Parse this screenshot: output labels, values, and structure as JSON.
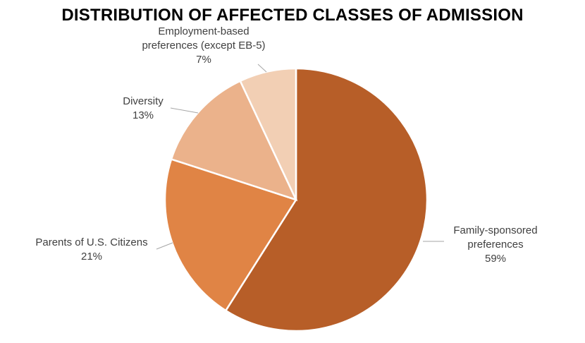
{
  "chart_data": {
    "type": "pie",
    "title": "DISTRIBUTION OF AFFECTED CLASSES OF ADMISSION",
    "slices": [
      {
        "label_lines": [
          "Family-sponsored",
          "preferences"
        ],
        "value_label": "59%",
        "value": 59,
        "color": "#B75E28"
      },
      {
        "label_lines": [
          "Parents of U.S. Citizens"
        ],
        "value_label": "21%",
        "value": 21,
        "color": "#E08445"
      },
      {
        "label_lines": [
          "Diversity"
        ],
        "value_label": "13%",
        "value": 13,
        "color": "#EBB28B"
      },
      {
        "label_lines": [
          "Employment-based",
          "preferences (except EB-5)"
        ],
        "value_label": "7%",
        "value": 7,
        "color": "#F2CFB4"
      }
    ],
    "start_angle": "12 o'clock",
    "direction": "clockwise",
    "legend": "none",
    "labels": "outside with leader lines"
  }
}
